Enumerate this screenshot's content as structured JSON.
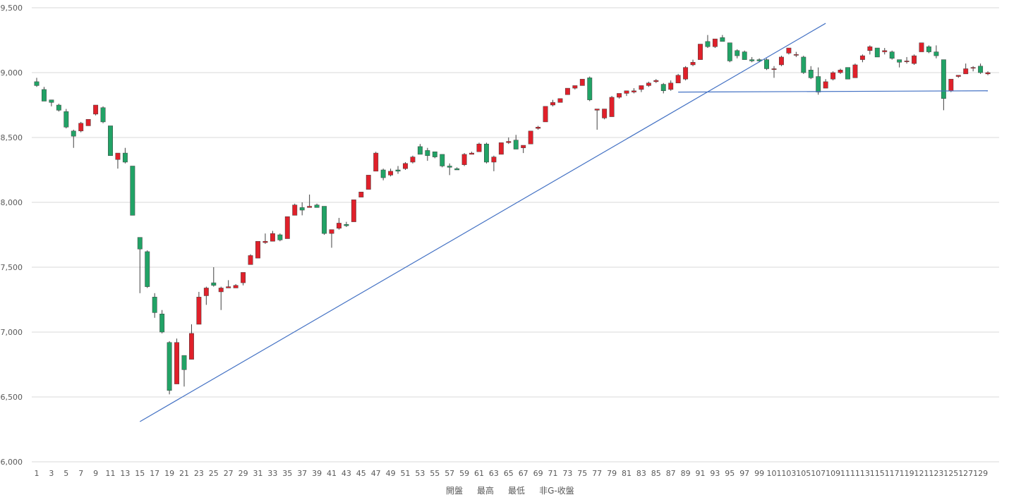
{
  "chart_data": {
    "type": "candlestick",
    "title": "",
    "xlabel": "",
    "ylabel": "",
    "ylim": [
      6000,
      9500
    ],
    "y_ticks": [
      "6,000",
      "6,500",
      "7,000",
      "7,500",
      "8,000",
      "8,500",
      "9,000",
      "9,500"
    ],
    "y_tick_values": [
      6000,
      6500,
      7000,
      7500,
      8000,
      8500,
      9000,
      9500
    ],
    "x_range": [
      1,
      130
    ],
    "x_ticks": [
      "1",
      "3",
      "5",
      "7",
      "9",
      "11",
      "13",
      "15",
      "17",
      "19",
      "21",
      "23",
      "25",
      "27",
      "29",
      "31",
      "33",
      "35",
      "37",
      "39",
      "41",
      "43",
      "45",
      "47",
      "49",
      "51",
      "53",
      "55",
      "57",
      "59",
      "61",
      "63",
      "65",
      "67",
      "69",
      "71",
      "73",
      "75",
      "77",
      "79",
      "81",
      "83",
      "85",
      "87",
      "89",
      "91",
      "93",
      "95",
      "97",
      "99",
      "101",
      "103",
      "105",
      "107",
      "109",
      "111",
      "113",
      "115",
      "117",
      "119",
      "121",
      "123",
      "125",
      "127",
      "129"
    ],
    "grid": true,
    "legend": [
      "開盤",
      "最高",
      "最低",
      "非G-收盤"
    ],
    "legend_position": "bottom",
    "colors": {
      "up": "#e0202a",
      "down": "#21a366",
      "grid": "#d9d9d9",
      "trendline": "#4472c4",
      "text": "#595959"
    },
    "ohlc": [
      [
        8930,
        8960,
        8890,
        8900
      ],
      [
        8870,
        8890,
        8780,
        8780
      ],
      [
        8790,
        8790,
        8740,
        8770
      ],
      [
        8750,
        8760,
        8700,
        8710
      ],
      [
        8700,
        8720,
        8570,
        8580
      ],
      [
        8550,
        8560,
        8420,
        8510
      ],
      [
        8550,
        8620,
        8540,
        8610
      ],
      [
        8590,
        8640,
        8590,
        8640
      ],
      [
        8680,
        8750,
        8670,
        8750
      ],
      [
        8730,
        8740,
        8610,
        8620
      ],
      [
        8590,
        8590,
        8360,
        8360
      ],
      [
        8330,
        8380,
        8260,
        8380
      ],
      [
        8380,
        8420,
        8300,
        8310
      ],
      [
        8280,
        8280,
        7900,
        7900
      ],
      [
        7730,
        7730,
        7300,
        7640
      ],
      [
        7620,
        7630,
        7340,
        7350
      ],
      [
        7270,
        7300,
        7110,
        7150
      ],
      [
        7140,
        7170,
        6990,
        7000
      ],
      [
        6920,
        6930,
        6520,
        6550
      ],
      [
        6600,
        6950,
        6600,
        6920
      ],
      [
        6820,
        6820,
        6580,
        6710
      ],
      [
        6790,
        7060,
        6790,
        6990
      ],
      [
        7060,
        7310,
        7060,
        7270
      ],
      [
        7280,
        7350,
        7210,
        7340
      ],
      [
        7380,
        7500,
        7350,
        7360
      ],
      [
        7310,
        7350,
        7170,
        7340
      ],
      [
        7340,
        7400,
        7340,
        7350
      ],
      [
        7340,
        7370,
        7340,
        7360
      ],
      [
        7380,
        7460,
        7360,
        7460
      ],
      [
        7520,
        7600,
        7520,
        7590
      ],
      [
        7570,
        7700,
        7570,
        7700
      ],
      [
        7690,
        7760,
        7680,
        7700
      ],
      [
        7700,
        7780,
        7700,
        7760
      ],
      [
        7750,
        7760,
        7700,
        7710
      ],
      [
        7720,
        7890,
        7720,
        7890
      ],
      [
        7900,
        7990,
        7900,
        7980
      ],
      [
        7960,
        8000,
        7900,
        7940
      ],
      [
        7960,
        8060,
        7960,
        7970
      ],
      [
        7980,
        7990,
        7960,
        7960
      ],
      [
        7970,
        7970,
        7750,
        7760
      ],
      [
        7760,
        7790,
        7650,
        7790
      ],
      [
        7800,
        7880,
        7790,
        7840
      ],
      [
        7830,
        7850,
        7810,
        7820
      ],
      [
        7850,
        8020,
        7850,
        8020
      ],
      [
        8040,
        8080,
        8040,
        8080
      ],
      [
        8100,
        8210,
        8100,
        8210
      ],
      [
        8240,
        8390,
        8240,
        8380
      ],
      [
        8250,
        8260,
        8170,
        8190
      ],
      [
        8210,
        8260,
        8200,
        8240
      ],
      [
        8250,
        8280,
        8220,
        8240
      ],
      [
        8260,
        8310,
        8250,
        8300
      ],
      [
        8310,
        8360,
        8300,
        8350
      ],
      [
        8430,
        8450,
        8370,
        8370
      ],
      [
        8400,
        8420,
        8320,
        8360
      ],
      [
        8390,
        8390,
        8340,
        8350
      ],
      [
        8370,
        8370,
        8270,
        8280
      ],
      [
        8280,
        8300,
        8210,
        8270
      ],
      [
        8260,
        8270,
        8250,
        8250
      ],
      [
        8290,
        8380,
        8280,
        8370
      ],
      [
        8370,
        8390,
        8370,
        8380
      ],
      [
        8390,
        8460,
        8390,
        8450
      ],
      [
        8450,
        8460,
        8300,
        8310
      ],
      [
        8310,
        8360,
        8240,
        8350
      ],
      [
        8370,
        8460,
        8370,
        8460
      ],
      [
        8460,
        8500,
        8450,
        8470
      ],
      [
        8480,
        8520,
        8410,
        8410
      ],
      [
        8420,
        8430,
        8380,
        8440
      ],
      [
        8450,
        8550,
        8450,
        8550
      ],
      [
        8570,
        8590,
        8560,
        8580
      ],
      [
        8620,
        8740,
        8620,
        8740
      ],
      [
        8750,
        8790,
        8740,
        8770
      ],
      [
        8770,
        8800,
        8770,
        8800
      ],
      [
        8830,
        8880,
        8830,
        8880
      ],
      [
        8880,
        8900,
        8870,
        8900
      ],
      [
        8900,
        8950,
        8900,
        8950
      ],
      [
        8960,
        8970,
        8780,
        8790
      ],
      [
        8710,
        8710,
        8560,
        8720
      ],
      [
        8650,
        8720,
        8640,
        8720
      ],
      [
        8660,
        8820,
        8660,
        8810
      ],
      [
        8810,
        8840,
        8800,
        8840
      ],
      [
        8840,
        8860,
        8820,
        8860
      ],
      [
        8850,
        8880,
        8840,
        8860
      ],
      [
        8870,
        8900,
        8850,
        8900
      ],
      [
        8900,
        8930,
        8890,
        8920
      ],
      [
        8930,
        8950,
        8920,
        8940
      ],
      [
        8910,
        8920,
        8840,
        8860
      ],
      [
        8870,
        8940,
        8860,
        8920
      ],
      [
        8920,
        8990,
        8920,
        8980
      ],
      [
        8950,
        9050,
        8940,
        9040
      ],
      [
        9060,
        9100,
        9050,
        9080
      ],
      [
        9100,
        9220,
        9100,
        9220
      ],
      [
        9240,
        9290,
        9190,
        9200
      ],
      [
        9200,
        9260,
        9190,
        9260
      ],
      [
        9270,
        9290,
        9250,
        9240
      ],
      [
        9230,
        9230,
        9080,
        9090
      ],
      [
        9170,
        9180,
        9110,
        9130
      ],
      [
        9160,
        9170,
        9100,
        9100
      ],
      [
        9100,
        9120,
        9080,
        9090
      ],
      [
        9100,
        9110,
        9080,
        9090
      ],
      [
        9100,
        9110,
        9020,
        9030
      ],
      [
        9030,
        9050,
        8960,
        9030
      ],
      [
        9060,
        9130,
        9050,
        9120
      ],
      [
        9150,
        9190,
        9140,
        9190
      ],
      [
        9140,
        9160,
        9120,
        9140
      ],
      [
        9120,
        9130,
        8990,
        9000
      ],
      [
        9020,
        9050,
        8950,
        8960
      ],
      [
        8970,
        9040,
        8830,
        8850
      ],
      [
        8880,
        8950,
        8880,
        8930
      ],
      [
        8950,
        9010,
        8940,
        9000
      ],
      [
        9000,
        9030,
        8990,
        9020
      ],
      [
        9040,
        9040,
        8950,
        8950
      ],
      [
        8960,
        9070,
        8960,
        9060
      ],
      [
        9100,
        9140,
        9080,
        9130
      ],
      [
        9170,
        9210,
        9140,
        9200
      ],
      [
        9190,
        9190,
        9120,
        9120
      ],
      [
        9160,
        9190,
        9140,
        9170
      ],
      [
        9160,
        9170,
        9100,
        9110
      ],
      [
        9100,
        9100,
        9040,
        9080
      ],
      [
        9090,
        9120,
        9070,
        9090
      ],
      [
        9070,
        9140,
        9060,
        9130
      ],
      [
        9160,
        9230,
        9160,
        9230
      ],
      [
        9200,
        9210,
        9150,
        9160
      ],
      [
        9160,
        9210,
        9110,
        9130
      ],
      [
        9100,
        9100,
        8710,
        8800
      ],
      [
        8860,
        8950,
        8850,
        8950
      ],
      [
        8970,
        8980,
        8960,
        8980
      ],
      [
        8990,
        9070,
        8990,
        9030
      ],
      [
        9040,
        9050,
        9010,
        9040
      ],
      [
        9050,
        9070,
        8990,
        9000
      ],
      [
        8990,
        9010,
        8980,
        9000
      ]
    ],
    "trendlines": [
      {
        "x": [
          15,
          108
        ],
        "y": [
          6310,
          9380
        ]
      },
      {
        "x": [
          88,
          130
        ],
        "y": [
          8850,
          8860
        ]
      }
    ]
  }
}
